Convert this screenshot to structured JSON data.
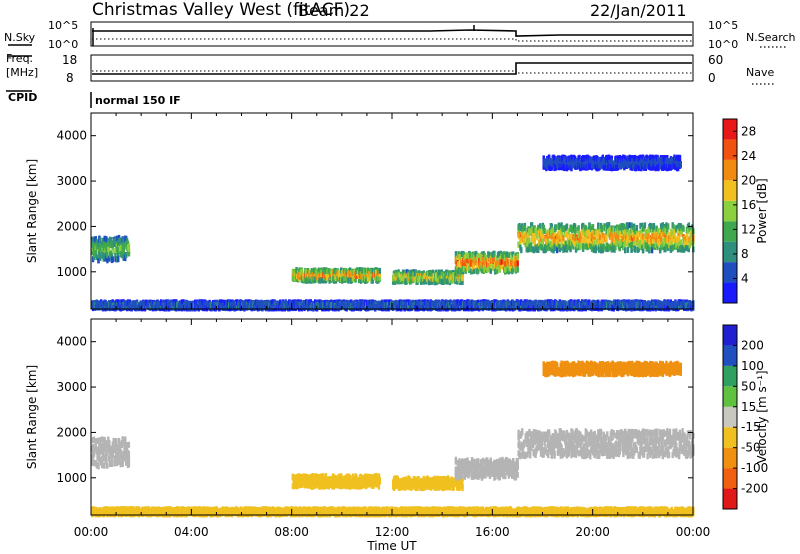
{
  "header": {
    "station": "Christmas Valley West (fitACF)",
    "beam": "Beam 22",
    "date": "22/Jan/2011"
  },
  "strip_labels": {
    "nsky": "N.Sky",
    "nsearch": "N.Search",
    "freq_line1": "Freq.",
    "freq_line2": "[MHz]",
    "nave": "Nave",
    "cpid": "CPID",
    "cpid_value": "normal 150 IF"
  },
  "strip_ticks": {
    "noise_left": [
      "10^5",
      "10^0"
    ],
    "noise_right": [
      "10^5",
      "10^0"
    ],
    "freq_left": [
      "18",
      "8"
    ],
    "freq_right": [
      "60",
      "0"
    ]
  },
  "colors": {
    "power_scale": [
      "#1a1aff",
      "#1f4fbf",
      "#2f8f7f",
      "#3fa84f",
      "#8ccf3f",
      "#f0c020",
      "#f08a10",
      "#f05010",
      "#e81818"
    ],
    "velocity_scale": [
      "#2020d0",
      "#2050c0",
      "#30a060",
      "#60c040",
      "#c8c8c0",
      "#f0c020",
      "#f09010",
      "#f06010",
      "#e01818"
    ],
    "ground_scatter": "#b4b4b4"
  },
  "chart_data": [
    {
      "type": "heatmap",
      "panel": "power",
      "xlabel": "",
      "ylabel": "Slant Range [km]",
      "xlim_hours": [
        0,
        24
      ],
      "ylim": [
        180,
        4500
      ],
      "y_ticks": [
        1000,
        2000,
        3000,
        4000
      ],
      "y_tick_labels": [
        "1000",
        "2000",
        "3000",
        "4000"
      ],
      "colorbar_label": "Power [dB]",
      "colorbar_ticks": [
        "4",
        "8",
        "12",
        "16",
        "20",
        "24",
        "28"
      ],
      "colorbar_range": [
        0,
        30
      ],
      "echo_regions": [
        {
          "t_start": 0.0,
          "t_end": 1.5,
          "range_center": 1500,
          "range_halfwidth": 250,
          "peak_dB": 16
        },
        {
          "t_start": 8.0,
          "t_end": 11.5,
          "range_center": 920,
          "range_halfwidth": 120,
          "peak_dB": 26
        },
        {
          "t_start": 12.0,
          "t_end": 14.8,
          "range_center": 880,
          "range_halfwidth": 110,
          "peak_dB": 22
        },
        {
          "t_start": 14.5,
          "t_end": 17.0,
          "range_center": 1200,
          "range_halfwidth": 200,
          "peak_dB": 28
        },
        {
          "t_start": 17.0,
          "t_end": 24.0,
          "range_center": 1750,
          "range_halfwidth": 280,
          "peak_dB": 24
        },
        {
          "t_start": 18.0,
          "t_end": 23.5,
          "range_center": 3400,
          "range_halfwidth": 120,
          "peak_dB": 6
        },
        {
          "t_start": 0.0,
          "t_end": 24.0,
          "range_center": 260,
          "range_halfwidth": 70,
          "peak_dB": 8
        }
      ]
    },
    {
      "type": "heatmap",
      "panel": "velocity",
      "xlabel": "Time UT",
      "ylabel": "Slant Range [km]",
      "xlim_hours": [
        0,
        24
      ],
      "ylim": [
        180,
        4500
      ],
      "x_ticks": [
        0,
        4,
        8,
        12,
        16,
        20,
        24
      ],
      "x_tick_labels": [
        "00:00",
        "04:00",
        "08:00",
        "12:00",
        "16:00",
        "20:00",
        "00:00"
      ],
      "y_ticks": [
        1000,
        2000,
        3000,
        4000
      ],
      "y_tick_labels": [
        "1000",
        "2000",
        "3000",
        "4000"
      ],
      "colorbar_label": "Velocity [m s⁻¹]",
      "colorbar_ticks": [
        "200",
        "100",
        "50",
        "15",
        "-15",
        "-50",
        "-100",
        "-200"
      ],
      "echo_regions": [
        {
          "t_start": 0.0,
          "t_end": 1.5,
          "range_center": 1550,
          "range_halfwidth": 300,
          "velocity": 0
        },
        {
          "t_start": 8.0,
          "t_end": 11.5,
          "range_center": 920,
          "range_halfwidth": 120,
          "velocity": -40
        },
        {
          "t_start": 12.0,
          "t_end": 14.8,
          "range_center": 880,
          "range_halfwidth": 110,
          "velocity": -40
        },
        {
          "t_start": 14.5,
          "t_end": 17.0,
          "range_center": 1200,
          "range_halfwidth": 200,
          "velocity": 0
        },
        {
          "t_start": 17.0,
          "t_end": 24.0,
          "range_center": 1750,
          "range_halfwidth": 280,
          "velocity": 0
        },
        {
          "t_start": 18.0,
          "t_end": 23.5,
          "range_center": 3400,
          "range_halfwidth": 120,
          "velocity": -80
        },
        {
          "t_start": 0.0,
          "t_end": 24.0,
          "range_center": 250,
          "range_halfwidth": 60,
          "velocity": -30
        }
      ]
    }
  ]
}
